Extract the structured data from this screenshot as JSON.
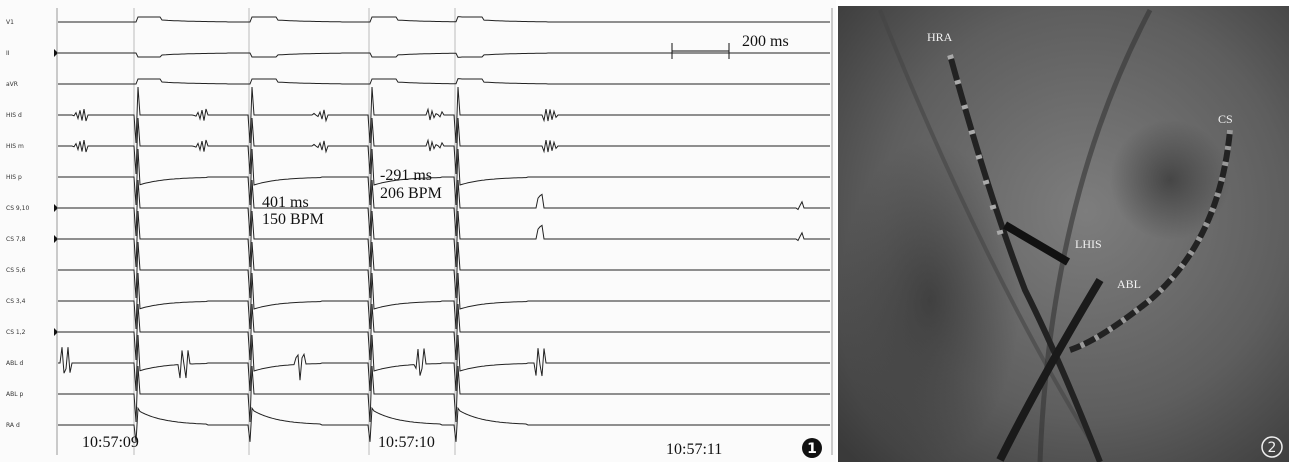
{
  "panel_1": {
    "channels": [
      "V1",
      "II",
      "aVR",
      "HIS d",
      "HIS m",
      "HIS p",
      "CS 9,10",
      "CS 7,8",
      "CS 5,6",
      "CS 3,4",
      "CS 1,2",
      "ABL d",
      "ABL p",
      "RA d"
    ],
    "scale_bar": "200 ms",
    "annotations": [
      {
        "interval": "401 ms",
        "rate": "150 BPM"
      },
      {
        "interval": "-291 ms",
        "rate": "206 BPM"
      }
    ],
    "timestamps": [
      "10:57:09",
      "10:57:10",
      "10:57:11"
    ],
    "badge": "1"
  },
  "panel_2": {
    "labels": [
      "HRA",
      "CS",
      "LHIS",
      "ABL"
    ],
    "badge": "2"
  }
}
